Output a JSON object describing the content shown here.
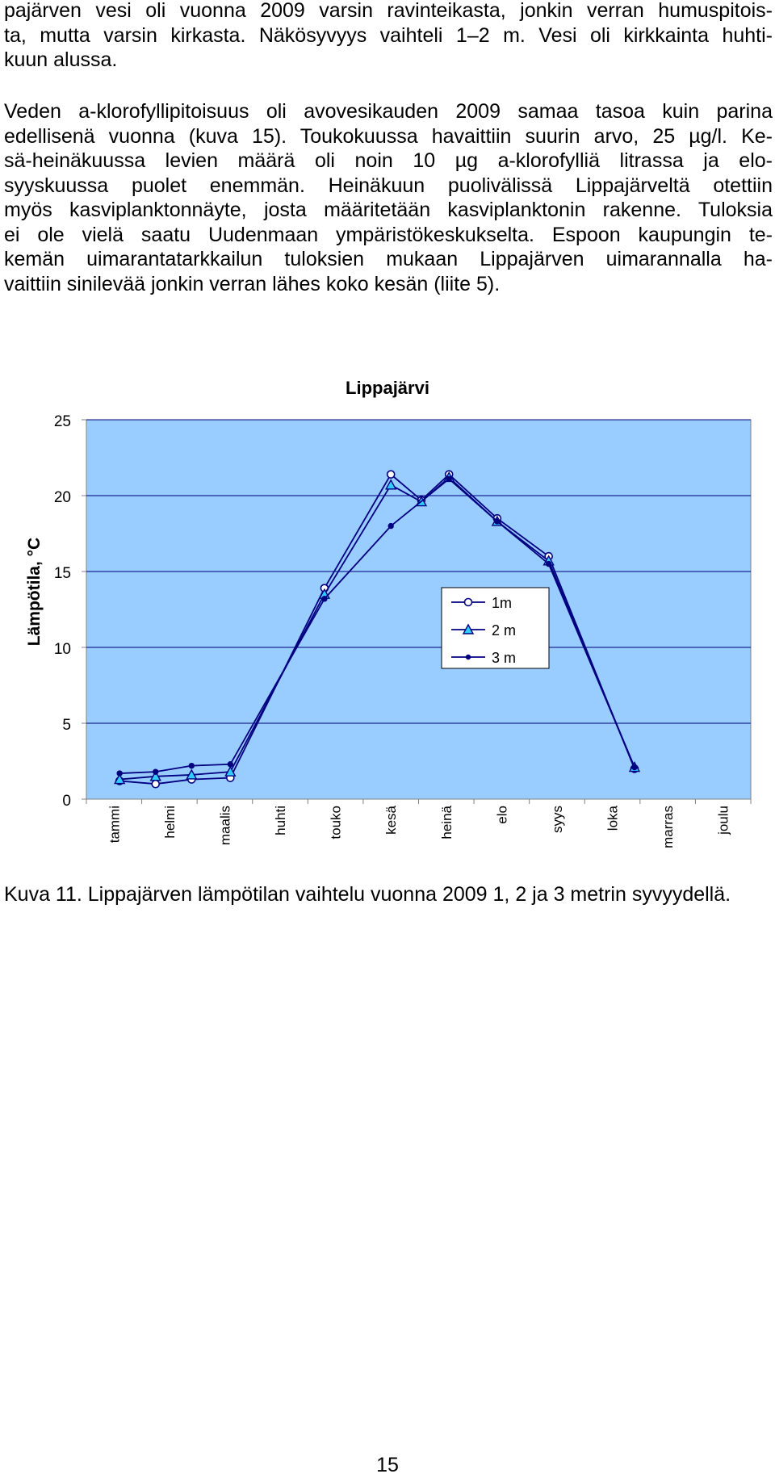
{
  "paragraph1": {
    "lines": [
      "pajärven vesi oli vuonna 2009 varsin ravinteikasta, jonkin verran humuspitois-",
      "ta, mutta varsin kirkasta. Näkösyvyys vaihteli 1–2 m. Vesi oli kirkkainta huhti-",
      "kuun alussa."
    ]
  },
  "paragraph2": {
    "lines": [
      "Veden a-klorofyllipitoisuus oli avovesikauden 2009 samaa tasoa kuin parina",
      "edellisenä vuonna (kuva 15). Toukokuussa havaittiin suurin arvo, 25 µg/l. Ke-",
      "sä-heinäkuussa levien määrä oli noin 10 µg a-klorofylliä litrassa ja elo-",
      "syyskuussa puolet enemmän. Heinäkuun puolivälissä Lippajärveltä otettiin",
      "myös kasviplanktonnäyte, josta määritetään kasviplanktonin rakenne. Tuloksia",
      "ei ole vielä saatu Uudenmaan ympäristökeskukselta. Espoon kaupungin te-",
      "kemän uimarantatarkkailun tuloksien mukaan Lippajärven uimarannalla ha-",
      "vaittiin sinilevää jonkin verran lähes koko kesän (liite 5)."
    ]
  },
  "caption": "Kuva 11. Lippajärven lämpötilan vaihtelu vuonna 2009 1, 2 ja 3 metrin syvyydellä.",
  "page_number": "15",
  "chart_data": {
    "type": "line",
    "title": "Lippajärvi",
    "ylabel": "Lämpötila, °C",
    "xlabel": "",
    "ylim": [
      0,
      25
    ],
    "yticks": [
      "0",
      "5",
      "10",
      "15",
      "20",
      "25"
    ],
    "categories": [
      "tammi",
      "helmi",
      "maalis",
      "huhti",
      "touko",
      "kesä",
      "heinä",
      "elo",
      "syys",
      "loka",
      "marras",
      "joulu"
    ],
    "grid": true,
    "legend_position": "bottom-right",
    "plot_background": "#99CCFF",
    "line_color": "#000080",
    "series": [
      {
        "name": "1m",
        "marker": "circle",
        "points": [
          [
            0.6,
            1.2
          ],
          [
            1.25,
            1.0
          ],
          [
            1.9,
            1.3
          ],
          [
            2.6,
            1.4
          ],
          [
            4.3,
            13.9
          ],
          [
            5.5,
            21.4
          ],
          [
            6.05,
            19.7
          ],
          [
            6.55,
            21.4
          ],
          [
            7.42,
            18.5
          ],
          [
            8.35,
            16.0
          ],
          [
            9.9,
            2.0
          ]
        ]
      },
      {
        "name": "2 m",
        "marker": "triangle",
        "points": [
          [
            0.6,
            1.3
          ],
          [
            1.25,
            1.5
          ],
          [
            1.9,
            1.6
          ],
          [
            2.6,
            1.8
          ],
          [
            4.3,
            13.5
          ],
          [
            5.5,
            20.7
          ],
          [
            6.05,
            19.6
          ],
          [
            6.55,
            21.2
          ],
          [
            7.42,
            18.3
          ],
          [
            8.35,
            15.7
          ],
          [
            9.9,
            2.1
          ]
        ]
      },
      {
        "name": "3 m",
        "marker": "dot",
        "points": [
          [
            0.6,
            1.7
          ],
          [
            1.25,
            1.8
          ],
          [
            1.9,
            2.2
          ],
          [
            2.6,
            2.3
          ],
          [
            4.3,
            13.2
          ],
          [
            5.5,
            18.0
          ],
          [
            6.55,
            21.1
          ],
          [
            7.42,
            18.3
          ],
          [
            8.35,
            15.5
          ],
          [
            9.9,
            2.1
          ]
        ]
      }
    ]
  }
}
